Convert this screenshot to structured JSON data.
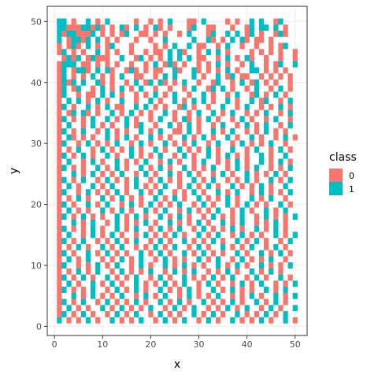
{
  "chart_data": {
    "type": "heatmap",
    "xlabel": "x",
    "ylabel": "y",
    "xlim": [
      -1.5,
      52.5
    ],
    "ylim": [
      -1.5,
      52.5
    ],
    "x_ticks": [
      0,
      10,
      20,
      30,
      40,
      50
    ],
    "y_ticks": [
      0,
      10,
      20,
      30,
      40,
      50
    ],
    "x_tick_labels": [
      "0",
      "10",
      "20",
      "30",
      "40",
      "50"
    ],
    "y_tick_labels": [
      "0",
      "10",
      "20",
      "30",
      "40",
      "50"
    ],
    "grid": true,
    "legend": {
      "title": "class",
      "placement": "right",
      "entries": [
        {
          "label": "0",
          "color": "#F8766D"
        },
        {
          "label": "1",
          "color": "#00BFC4"
        }
      ]
    },
    "colors": {
      "0": "#F8766D",
      "1": "#00BFC4"
    },
    "cells_note_values": "rows listed from y=50 down to y=1, characters for x=1..50; 0 = class 0, 1 = class 1, . = empty",
    "rows": [
      "11.0..1.0.1.....0..0.0.1...00.1....0.0..1.1..01...",
      "1100011010.0.10.1.0.10.0...01..00...0..01.11.1.0..",
      "10110001.0.0.01..00.0.0..0.1...01..1.1.01.0..010..",
      "1.01101.1.0.0...0..0..1.....1..10.0.1.10.00.0.....",
      "0.010.1.0.01...0....0.0.1..1.00..0.1..0..0..0.01..",
      "01.0.0..1.0.0..0..0.00.1.10..0.1.1.0....0.0.0.0..0",
      ".0101.01000..1..01.0.0.1.1.1.00..0.1.0.10..0..0..0",
      "0111.00.0.0.0..0..0.1.010.0..0.0.1.0..0.1..0.01..1",
      "01.0110.1.10..010.0.00..10..10.0.0.1.0..11.0.0.0..",
      "01.0.0.1.0.0.1..00..0.1.1...1.0..1.01.00..0.0.0.0.",
      "0101.1..10.0..0.1.01.10.0.1..0..01..0.1.01.0.0..0.",
      "01.01..0.1.0.1.0.1..0..0..0.1..01.1.0..0.1..0.1.0.",
      "01..0.00.1.1.0..0.0.1.0.1..0..1.0..0.1..01.0.1.0..",
      "0.1.1.0.1.0..1..0..1.0..1.0.1.1.0..1.0..1.01..0.1.",
      "01.0..1.0.1.00..1.1.0.0..01.0..0..1..0.1..0.0.1.0.",
      "0.01.10.0..1.0.1.0.0..1.0..0.1..1.0.1..0.0.1..0.1.",
      "01.0.0.1..1.0.1.0..0.1..0.10.0.1.0..0.1.0..0.1..0.",
      "0.1..0.1.0.0..1.01..0..1.0.1.0..0.1..0.1.0.1..0.1.",
      "01.0.1..0.1.0.0..1.0.1..00.1.0..1.0.1..0.0.1.0.0..",
      "0.10.0.0..1.0.1.0..1.0.0..1.0.1.0..1.0..1.0..0.1.0",
      "01..0.1.0.0.1..0.1.0..1.0.0.1..0.1..0.1.0.0.1..0..",
      "0.0.1..0.1.0.0.1.0..1.0..1.0.0.1.0..1..0.1..0.1.0.",
      "01.0.1.0..1.0..1.0.0.1..0.1.0..1.0.1.0.0..1.0..1..",
      "0.1..0.1.0..1.0.0.1..0.1.0..0.1..0.0.1.0..1.0.1.0.",
      "01.0.0..1.0.1.0..1.0.1.0..1.0.0.1..0.1.0.1..0.0.1.",
      "0..1.0.1.0.0.1..0.1.0..1.0.1.0..0.1.0..1.0.0.1.0..",
      "01.0.1..0.1.0.0.1..0.1.0.0..1.0.1..0.0.1.0..1.0.1.",
      "0.1.0..1.0.1..0.1.0.0.1..0.1.0.1.0..1.0.0.1.0..1..",
      "01..0.1.0.0.1.0..1.0.1..0.0.1.0..1.0.1..0.1.0.0.1.",
      "0.0.1.0..1.0.1.0.0..1.0.1.0..1.0.0.1.0..1.0.1..0..",
      "01.0..1.0.1..0.1.0.1.0.0.1..0.1.0..1.0.1.0.0..1.0.",
      "0.1.0.0..1.0.1.0..1.0.1..0.1.0.0.1..0.1.0..1.0.1..",
      "01.0.1.0.0..1.0.1.0..1.0.1.0..0.1.0.0.1..0.1.0.0.1",
      "0..1.0.1..0.1.0.0.1.0..1.0.0.1.0..1.0.1..0.0.1.0..",
      "01.0.0.1.0..1.0.1..0.1.0.1..0.1.0.0.1.0..1.0.1.0..",
      "0.1..0.1.0.1.0..0.1.0.0.1.0..1.0.1..0.1.0.0..1.0.1",
      "01.0.1..0.0.1.0.1..0.1.0..1.0.0.1.0..1.0.1.0..0.1.",
      "0.0.1.0..1.0.1..0.0.1.0.1..0.1.0..1.0.0.1..0.1.0..",
      "01.0..1.0.1.0.0..1.0.1.0..1.0.1.0.0..1.0..1.0.1.0.",
      "0.1.0.1..0.0.1.0.1..0.1.0.0..1.0.1..0.1.0.0.1..0..",
      "01..0.0.1.0.1..0.1.0..1.0.1.0.0..1.0.1.0..1.0.0.1.",
      "0.0.1.0.1..0.1.0.0.1..0.1.0.1..0.0.1.0..1.0.1.0...",
      "01.0.1.0..1.0.0.1..0.1.0..1.0.0.1.0.1..0.1.0..1.0.",
      "0.1.0..1.0.1.0..1.0.0.1.0.1..0.1.0..0.1.0.1..0.0.1",
      "01.0.0.1..0.1.0.1.0..1.0.0.1.0..1.0.1.0.0..1.0.1..",
      "0..1.0.1.0.0.1..0.1.0.1..0.1.0.0.1..0.0.1.0..1.0.1",
      "01.0.1..0.1.0.0.1.0..1.0.1.0..1.0.0.1.0..1.0.1.0..",
      "0.1.0.0..1.0.1.0.0.1..0.1.0.1..0.0.1.0.1..0.1.0..1",
      "01.0.1.0..0.1.0.1..0.1.0.0..1.0.1.0..1.0.0.1.0.1..",
      "1.0.0.1.0..1.0.0.1..0.1.0.1..0.1.0..1.0.0.1.0..1.0"
    ]
  }
}
